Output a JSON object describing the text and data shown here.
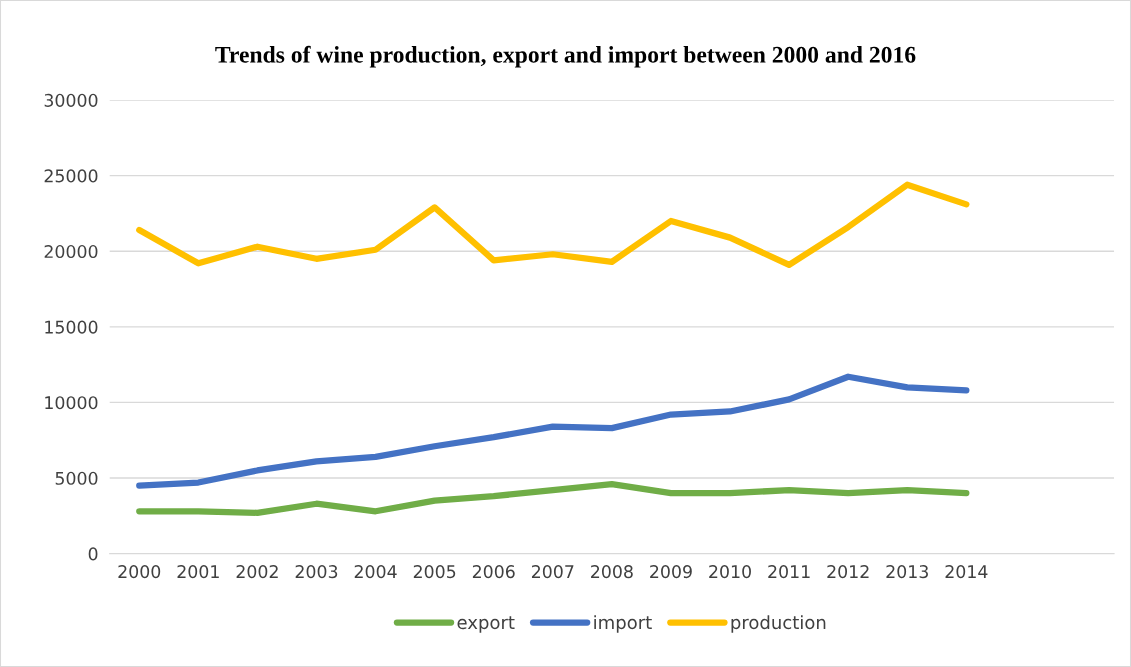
{
  "chart_data": {
    "type": "line",
    "title": "Trends of wine production, export and import between 2000 and 2016",
    "categories": [
      "2000",
      "2001",
      "2002",
      "2003",
      "2004",
      "2005",
      "2006",
      "2007",
      "2008",
      "2009",
      "2010",
      "2011",
      "2012",
      "2013",
      "2014",
      null,
      null
    ],
    "series": [
      {
        "name": "export",
        "color": "#70ad47",
        "values": [
          2800,
          2800,
          2700,
          3300,
          2800,
          3500,
          3800,
          4200,
          4600,
          4000,
          4000,
          4200,
          4000,
          4200,
          4000,
          null,
          null
        ]
      },
      {
        "name": "import",
        "color": "#4472c4",
        "values": [
          4500,
          4700,
          5500,
          6100,
          6400,
          7100,
          7700,
          8400,
          8300,
          9200,
          9400,
          10200,
          11700,
          11000,
          10800,
          null,
          null
        ]
      },
      {
        "name": "production",
        "color": "#ffc000",
        "values": [
          21400,
          19200,
          20300,
          19500,
          20100,
          22900,
          19400,
          19800,
          19300,
          22000,
          20900,
          19100,
          21600,
          24400,
          23100,
          null,
          null
        ]
      }
    ],
    "ylim": [
      0,
      30000
    ],
    "yticks": [
      0,
      5000,
      10000,
      15000,
      20000,
      25000,
      30000
    ],
    "grid": "y",
    "legend": "bottom",
    "marker": "none",
    "line_style": "solid"
  }
}
